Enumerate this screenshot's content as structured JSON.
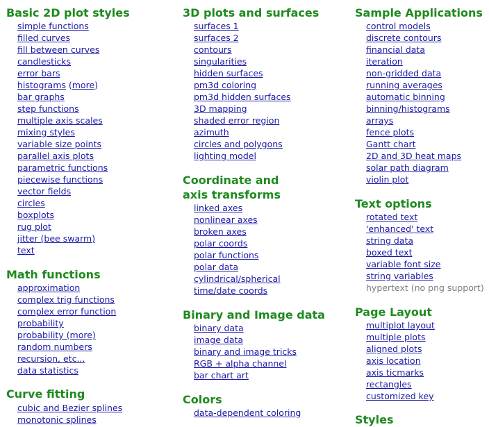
{
  "columns": [
    {
      "sections": [
        {
          "title": [
            "Basic 2D plot styles"
          ],
          "items": [
            {
              "label": "simple functions"
            },
            {
              "label": "filled curves"
            },
            {
              "label": "fill between curves"
            },
            {
              "label": "candlesticks"
            },
            {
              "label": "error bars"
            },
            {
              "label": "histograms",
              "extra": "more"
            },
            {
              "label": "bar graphs"
            },
            {
              "label": "step functions"
            },
            {
              "label": "multiple axis scales"
            },
            {
              "label": "mixing styles"
            },
            {
              "label": "variable size points"
            },
            {
              "label": "parallel axis plots"
            },
            {
              "label": "parametric functions"
            },
            {
              "label": "piecewise functions"
            },
            {
              "label": "vector fields"
            },
            {
              "label": "circles"
            },
            {
              "label": "boxplots"
            },
            {
              "label": "rug plot"
            },
            {
              "label": "jitter (bee swarm)"
            },
            {
              "label": "text"
            }
          ]
        },
        {
          "title": [
            "Math functions"
          ],
          "items": [
            {
              "label": "approximation"
            },
            {
              "label": "complex trig functions"
            },
            {
              "label": "complex error function"
            },
            {
              "label": "probability"
            },
            {
              "label": "probability (more)"
            },
            {
              "label": "random numbers"
            },
            {
              "label": "recursion, etc..."
            },
            {
              "label": "data statistics"
            }
          ]
        },
        {
          "title": [
            "Curve fitting"
          ],
          "items": [
            {
              "label": "cubic and Bezier splines"
            },
            {
              "label": "monotonic splines"
            }
          ]
        }
      ]
    },
    {
      "sections": [
        {
          "title": [
            "3D plots and surfaces"
          ],
          "items": [
            {
              "label": "surfaces 1"
            },
            {
              "label": "surfaces 2"
            },
            {
              "label": "contours"
            },
            {
              "label": "singularities"
            },
            {
              "label": "hidden surfaces"
            },
            {
              "label": "pm3d coloring"
            },
            {
              "label": "pm3d hidden surfaces"
            },
            {
              "label": "3D mapping"
            },
            {
              "label": "shaded error region"
            },
            {
              "label": "azimuth"
            },
            {
              "label": "circles and polygons"
            },
            {
              "label": "lighting model"
            }
          ]
        },
        {
          "title": [
            "Coordinate and",
            "axis transforms"
          ],
          "items": [
            {
              "label": "linked axes"
            },
            {
              "label": "nonlinear axes"
            },
            {
              "label": "broken axes"
            },
            {
              "label": "polar coords"
            },
            {
              "label": "polar functions"
            },
            {
              "label": "polar data"
            },
            {
              "label": "cylindrical/spherical"
            },
            {
              "label": "time/date coords"
            }
          ]
        },
        {
          "title": [
            "Binary and Image data"
          ],
          "items": [
            {
              "label": "binary data"
            },
            {
              "label": "image data"
            },
            {
              "label": "binary and image tricks"
            },
            {
              "label": "RGB + alpha channel"
            },
            {
              "label": "bar chart art"
            }
          ]
        },
        {
          "title": [
            "Colors"
          ],
          "items": [
            {
              "label": "data-dependent coloring"
            }
          ]
        }
      ]
    },
    {
      "sections": [
        {
          "title": [
            "Sample Applications"
          ],
          "items": [
            {
              "label": "control models"
            },
            {
              "label": "discrete contours"
            },
            {
              "label": "financial data"
            },
            {
              "label": "iteration"
            },
            {
              "label": "non-gridded data"
            },
            {
              "label": "running averages"
            },
            {
              "label": "automatic binning"
            },
            {
              "label": "binning/histograms"
            },
            {
              "label": "arrays"
            },
            {
              "label": "fence plots"
            },
            {
              "label": "Gantt chart"
            },
            {
              "label": "2D and 3D heat maps"
            },
            {
              "label": "solar path diagram"
            },
            {
              "label": "violin plot"
            }
          ]
        },
        {
          "title": [
            "Text options"
          ],
          "items": [
            {
              "label": "rotated text"
            },
            {
              "label": "'enhanced' text"
            },
            {
              "label": "string data"
            },
            {
              "label": "boxed text"
            },
            {
              "label": "variable font size"
            },
            {
              "label": "string variables"
            },
            {
              "label": "hypertext (no png support)",
              "muted": true
            }
          ]
        },
        {
          "title": [
            "Page Layout"
          ],
          "items": [
            {
              "label": "multiplot layout"
            },
            {
              "label": "multiple plots"
            },
            {
              "label": "aligned plots"
            },
            {
              "label": "axis location"
            },
            {
              "label": "axis ticmarks"
            },
            {
              "label": "rectangles"
            },
            {
              "label": "customized key"
            }
          ]
        },
        {
          "title": [
            "Styles"
          ],
          "items": []
        }
      ]
    }
  ]
}
